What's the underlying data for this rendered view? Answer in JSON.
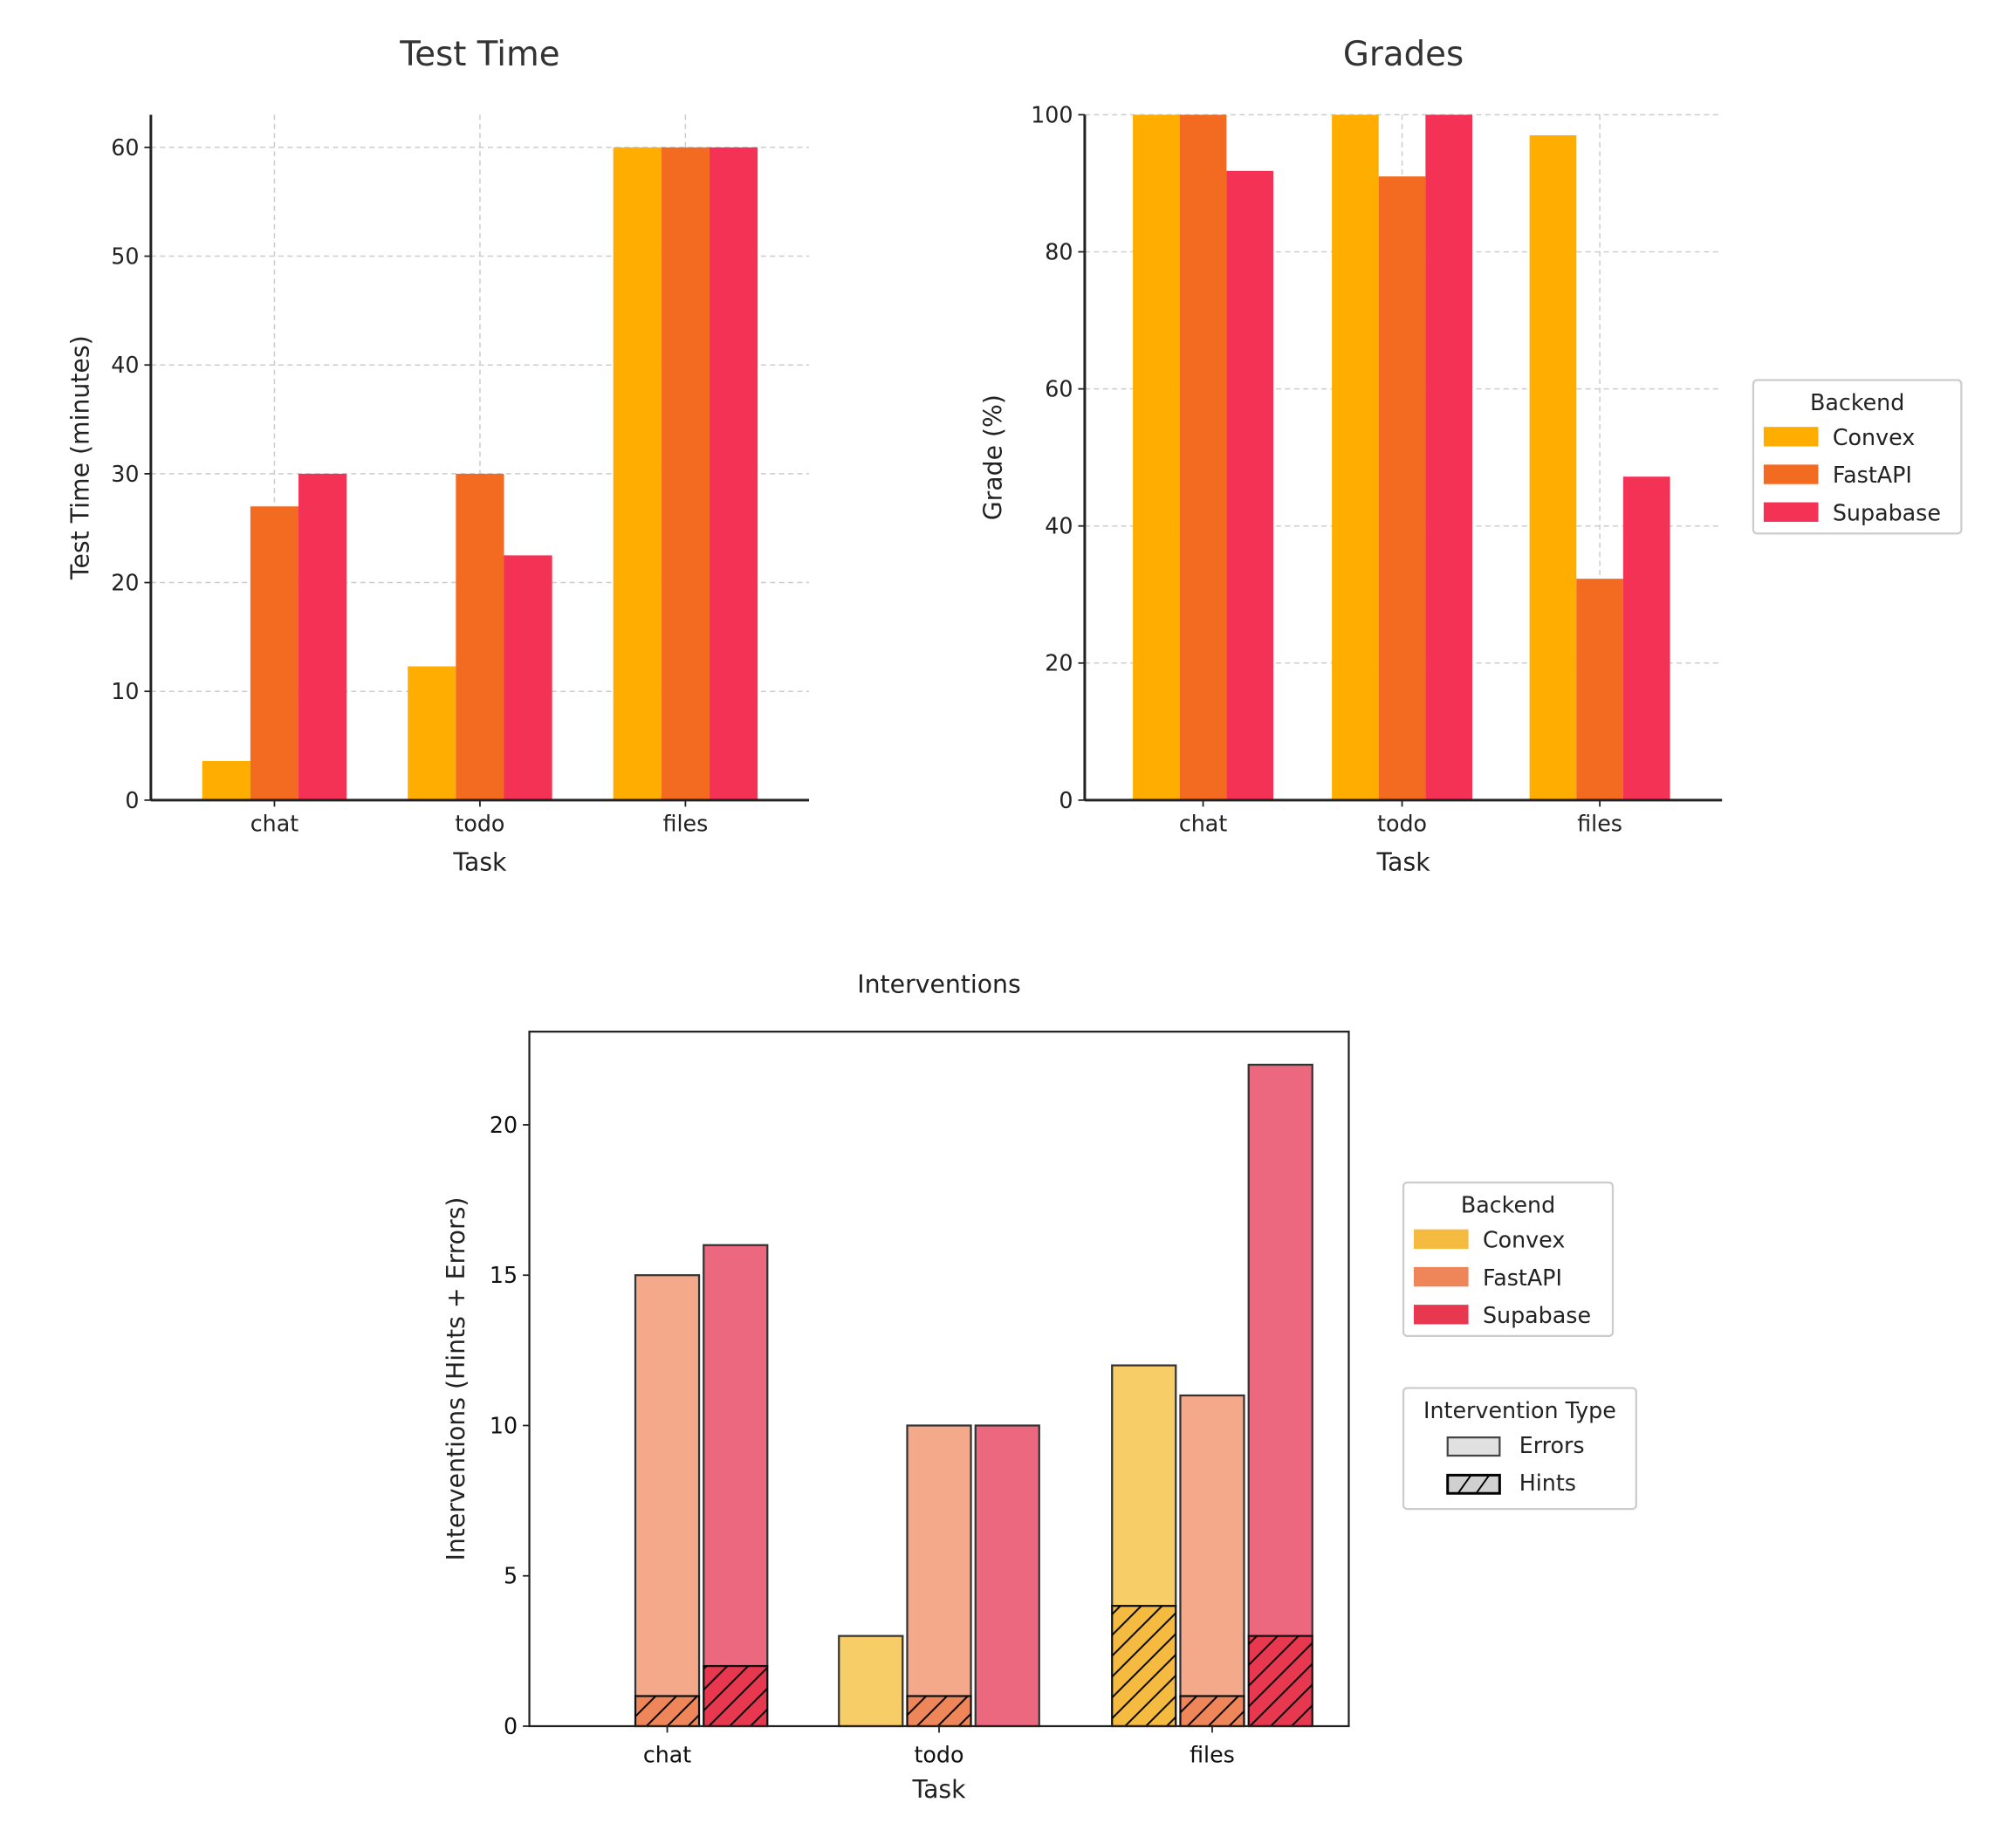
{
  "chart_data": [
    {
      "type": "bar",
      "title": "Test Time",
      "xlabel": "Task",
      "ylabel": "Test Time (minutes)",
      "categories": [
        "chat",
        "todo",
        "files"
      ],
      "ylim": [
        0,
        63
      ],
      "yticks": [
        0,
        10,
        20,
        30,
        40,
        50,
        60
      ],
      "grid": true,
      "series": [
        {
          "name": "Convex",
          "color": "#FFAE00",
          "values": [
            3.6,
            12.3,
            60
          ]
        },
        {
          "name": "FastAPI",
          "color": "#F26B21",
          "values": [
            27,
            30,
            60
          ]
        },
        {
          "name": "Supabase",
          "color": "#F43256",
          "values": [
            30,
            22.5,
            60
          ]
        }
      ]
    },
    {
      "type": "bar",
      "title": "Grades",
      "xlabel": "Task",
      "ylabel": "Grade (%)",
      "categories": [
        "chat",
        "todo",
        "files"
      ],
      "ylim": [
        0,
        100
      ],
      "yticks": [
        0,
        20,
        40,
        60,
        80,
        100
      ],
      "grid": true,
      "legend": {
        "title": "Backend",
        "placement": "right",
        "entries": [
          "Convex",
          "FastAPI",
          "Supabase"
        ]
      },
      "series": [
        {
          "name": "Convex",
          "color": "#FFAE00",
          "values": [
            100,
            100,
            97
          ]
        },
        {
          "name": "FastAPI",
          "color": "#F26B21",
          "values": [
            100,
            91,
            32.3
          ]
        },
        {
          "name": "Supabase",
          "color": "#F43256",
          "values": [
            91.8,
            100,
            47.2
          ]
        }
      ]
    },
    {
      "type": "bar",
      "stacked": true,
      "title": "Interventions",
      "xlabel": "Task",
      "ylabel": "Interventions (Hints + Errors)",
      "categories": [
        "chat",
        "todo",
        "files"
      ],
      "ylim": [
        0,
        23.1
      ],
      "yticks": [
        0,
        5,
        10,
        15,
        20
      ],
      "grid": false,
      "legend": {
        "title": "Backend",
        "placement": "right",
        "entries": [
          "Convex",
          "FastAPI",
          "Supabase"
        ]
      },
      "type_legend": {
        "title": "Intervention Type",
        "placement": "right",
        "entries": [
          "Errors",
          "Hints"
        ]
      },
      "series": [
        {
          "name": "Convex",
          "color": "#F4BB40",
          "errors_color": "#F7CD67",
          "hints": [
            0,
            0,
            4
          ],
          "totals": [
            0,
            3,
            12
          ]
        },
        {
          "name": "FastAPI",
          "color": "#EE8659",
          "errors_color": "#F4A98A",
          "hints": [
            1,
            1,
            1
          ],
          "totals": [
            15,
            10,
            11
          ]
        },
        {
          "name": "Supabase",
          "color": "#E8384F",
          "errors_color": "#EC687E",
          "hints": [
            2,
            0,
            3
          ],
          "totals": [
            16,
            10,
            22
          ]
        }
      ]
    }
  ]
}
